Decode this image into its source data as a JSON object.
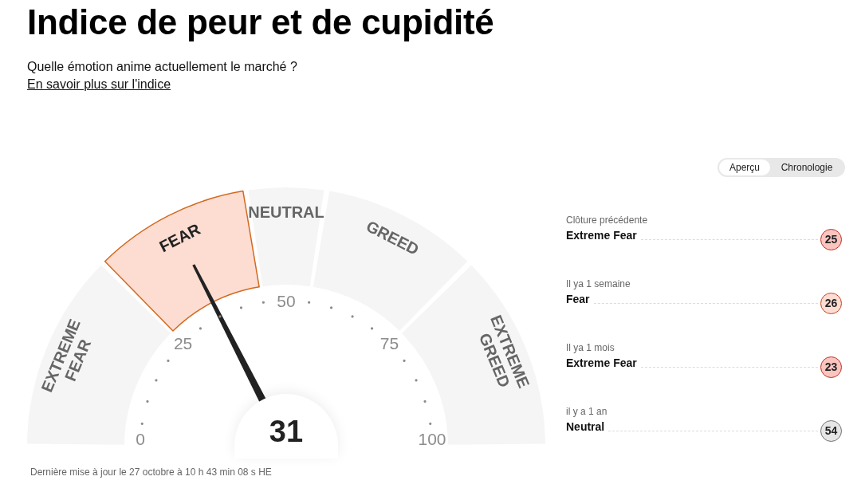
{
  "chart_data": [
    {
      "type": "donut",
      "title": "Indice de peur et de cupidité",
      "subtitle": "Quelle émotion anime actuellement le marché ?",
      "categories": [
        "EXTREME FEAR",
        "FEAR",
        "NEUTRAL",
        "GREED",
        "EXTREME GREED"
      ],
      "values": [
        25,
        20,
        10,
        20,
        25
      ],
      "colors": [
        "#f5f5f5",
        "#fddcd2",
        "#f5f5f5",
        "#f5f5f5",
        "#f5f5f5"
      ],
      "needle": "FEAR",
      "annotations": [
        "En savoir plus sur l'indice",
        "0",
        "25",
        "50",
        "75",
        "100",
        "31",
        "Dernière mise à jour le 27 octobre à 10 h 43 min 08 s HE"
      ]
    },
    {
      "type": "other",
      "annotations": [
        "Aperçu",
        "Chronologie",
        "Clôture précédente",
        "Extreme Fear",
        "25",
        "Il ya 1 semaine",
        "Fear",
        "26",
        "Il ya 1 mois",
        "Extreme Fear",
        "23",
        "il y a 1 an",
        "Neutral",
        "54"
      ],
      "colors": [
        "#fbc4bf",
        "#fddcd2",
        "#fbc4bf",
        "#e6e6e6"
      ]
    }
  ]
}
